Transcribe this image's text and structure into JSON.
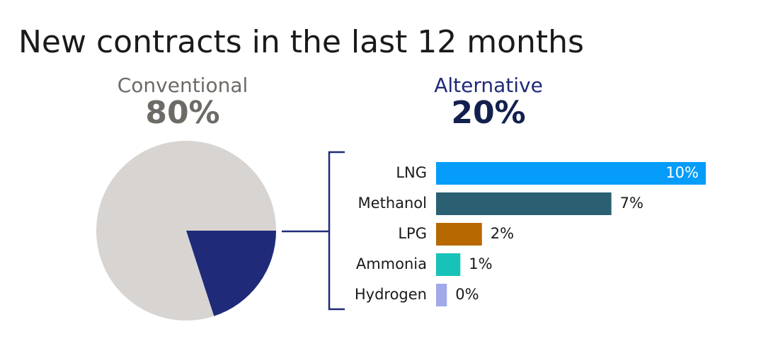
{
  "chart_data": [
    {
      "type": "pie",
      "title": "New contracts in the last 12 months",
      "categories": [
        "Conventional",
        "Alternative"
      ],
      "values": [
        80,
        20
      ],
      "value_labels": [
        "80%",
        "20%"
      ],
      "colors": [
        "#d7d4d2",
        "#1f2a78"
      ],
      "label_colors": [
        "#6e6a66",
        "#1f2a78"
      ],
      "value_label_colors": [
        "#6e6a66",
        "#13204f"
      ]
    },
    {
      "type": "bar",
      "orientation": "horizontal",
      "categories": [
        "LNG",
        "Methanol",
        "LPG",
        "Ammonia",
        "Hydrogen"
      ],
      "values": [
        10,
        6.5,
        1.7,
        0.9,
        0.4
      ],
      "value_labels": [
        "10%",
        "7%",
        "2%",
        "1%",
        "0%"
      ],
      "colors": [
        "#069cf9",
        "#2b6073",
        "#b86800",
        "#17c3b9",
        "#a1a9e8"
      ],
      "xlim": [
        0,
        10
      ]
    }
  ]
}
